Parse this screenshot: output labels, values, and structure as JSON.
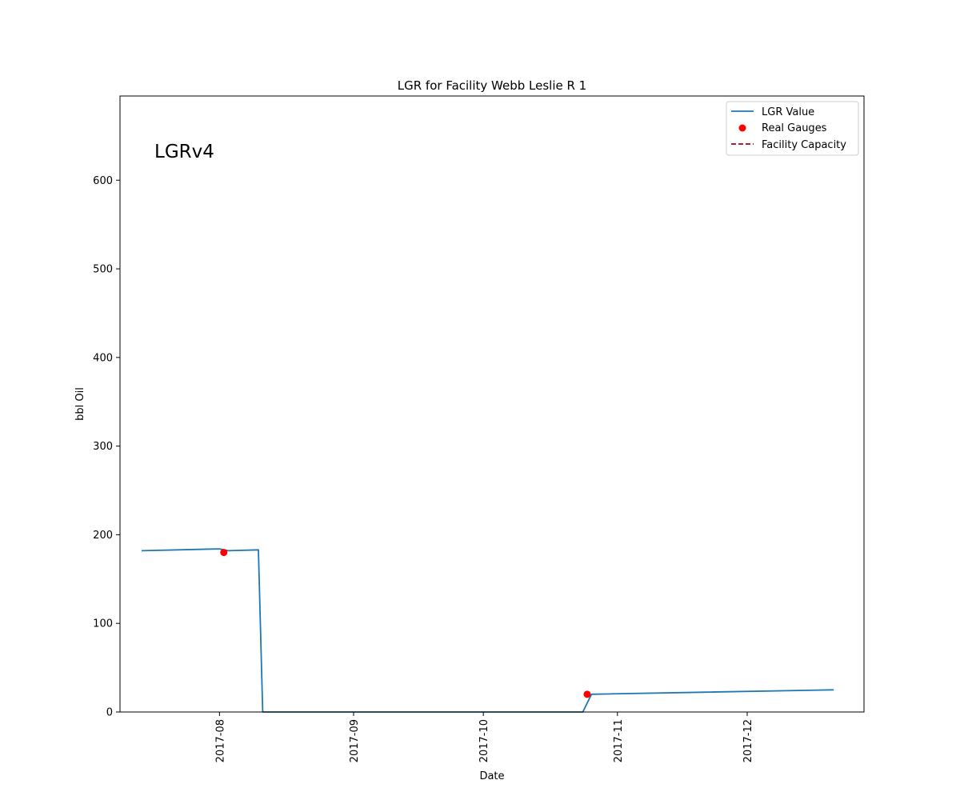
{
  "chart_data": {
    "type": "line",
    "title": "LGR for Facility Webb Leslie R 1",
    "xlabel": "Date",
    "ylabel": "bbl Oil",
    "annotation": "LGRv4",
    "xlim": [
      "2017-07-09",
      "2017-12-28"
    ],
    "ylim": [
      0,
      695
    ],
    "x_ticks": [
      "2017-08",
      "2017-09",
      "2017-10",
      "2017-11",
      "2017-12"
    ],
    "y_ticks": [
      0,
      100,
      200,
      300,
      400,
      500,
      600
    ],
    "grid": false,
    "legend_position": "top-right",
    "series": [
      {
        "name": "LGR Value",
        "kind": "line",
        "color": "#1f77b4",
        "points": [
          {
            "x": "2017-07-14",
            "y": 182
          },
          {
            "x": "2017-08-01",
            "y": 184
          },
          {
            "x": "2017-08-03",
            "y": 182
          },
          {
            "x": "2017-08-10",
            "y": 183
          },
          {
            "x": "2017-08-11",
            "y": 0
          },
          {
            "x": "2017-10-24",
            "y": 0
          },
          {
            "x": "2017-10-26",
            "y": 20
          },
          {
            "x": "2017-12-21",
            "y": 25
          }
        ]
      },
      {
        "name": "Real Gauges",
        "kind": "scatter",
        "color": "#ff0000",
        "points": [
          {
            "x": "2017-08-02",
            "y": 180
          },
          {
            "x": "2017-10-25",
            "y": 20
          }
        ]
      },
      {
        "name": "Facility Capacity",
        "kind": "dashed-line",
        "color": "#a50021",
        "points": []
      }
    ]
  }
}
